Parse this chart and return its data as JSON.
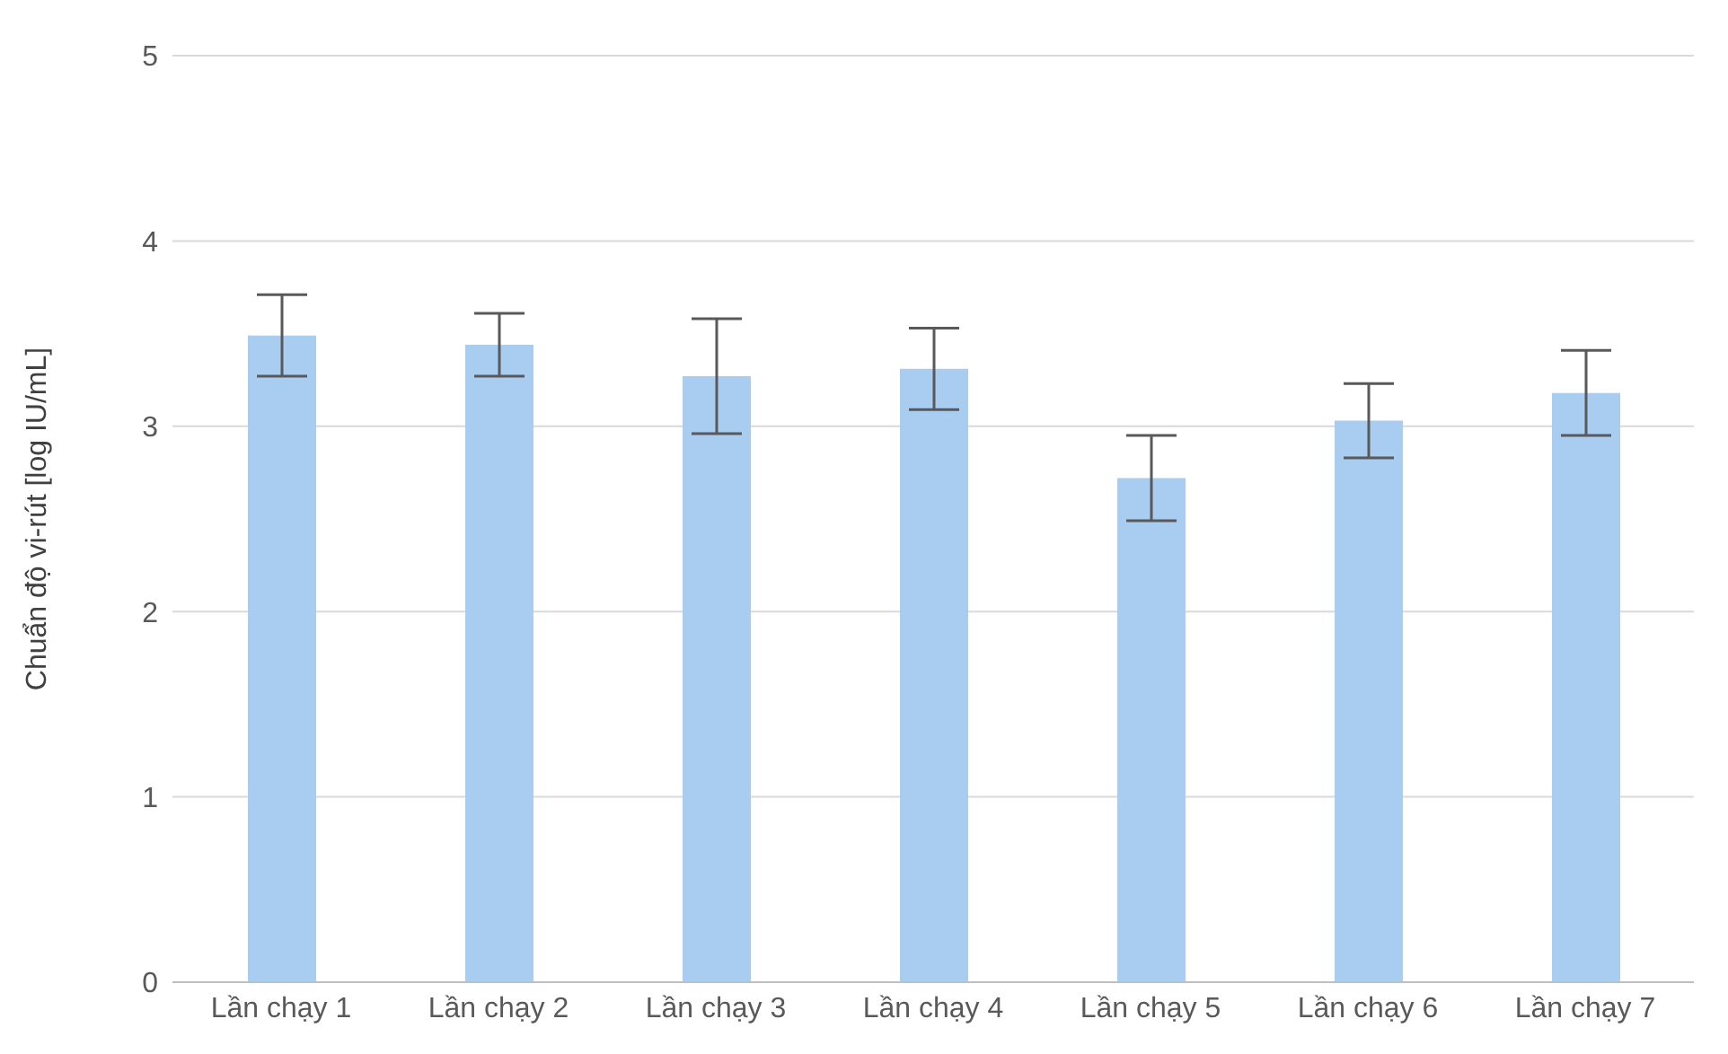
{
  "chart_data": {
    "type": "bar",
    "ylabel": "Chuẩn độ vi-rút [log IU/mL]",
    "categories": [
      "Lần chạy 1",
      "Lần chạy 2",
      "Lần chạy 3",
      "Lần chạy 4",
      "Lần chạy 5",
      "Lần chạy 6",
      "Lần chạy 7"
    ],
    "values": [
      3.49,
      3.44,
      3.27,
      3.31,
      2.72,
      3.03,
      3.18
    ],
    "errors": [
      0.22,
      0.17,
      0.31,
      0.22,
      0.23,
      0.2,
      0.23
    ],
    "color": "#a9cdf0",
    "ylim": [
      0,
      5
    ],
    "yticks": [
      0,
      1,
      2,
      3,
      4,
      5
    ],
    "grid": "y",
    "legend": false
  }
}
